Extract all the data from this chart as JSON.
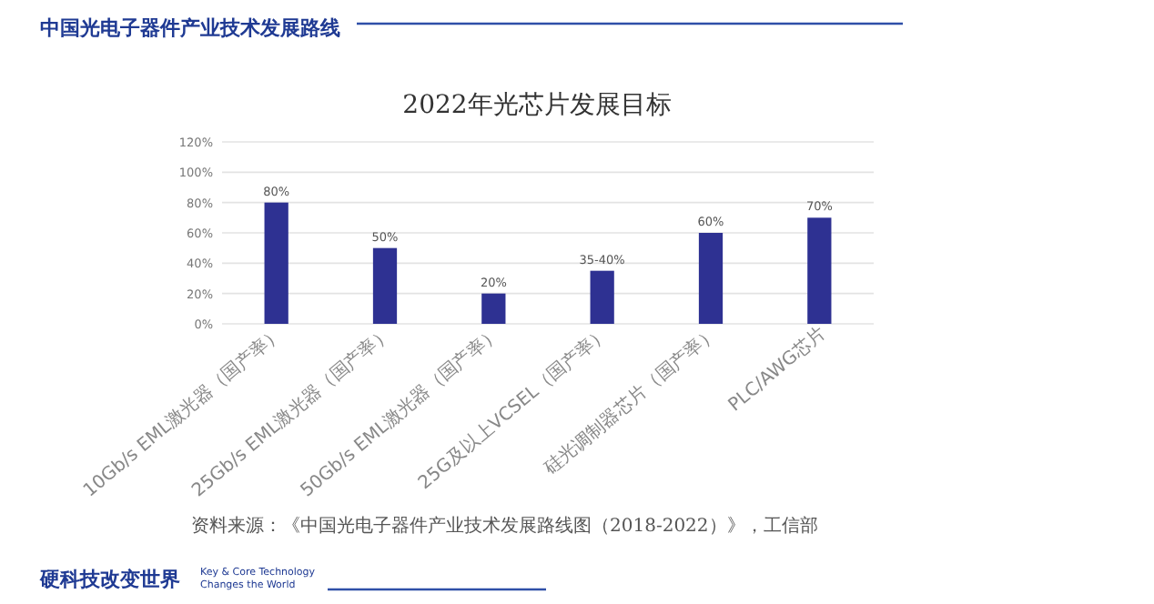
{
  "chart_data": {
    "type": "bar",
    "title": "2022年光芯片发展目标",
    "categories": [
      "10Gb/s EML激光器（国产率）",
      "25Gb/s EML激光器（国产率）",
      "50Gb/s EML激光器（国产率）",
      "25G及以上VCSEL（国产率）",
      "硅光调制器芯片（国产率）",
      "PLC/AWG芯片"
    ],
    "values": [
      80,
      50,
      20,
      35,
      60,
      70
    ],
    "value_labels": [
      "80%",
      "50%",
      "20%",
      "35-40%",
      "60%",
      "70%"
    ],
    "color": "#2e3192",
    "ylim": [
      0,
      120
    ],
    "yticks": [
      {
        "value": 0,
        "label": "0%"
      },
      {
        "value": 20,
        "label": "20%"
      },
      {
        "value": 40,
        "label": "40%"
      },
      {
        "value": 60,
        "label": "60%"
      },
      {
        "value": 80,
        "label": "80%"
      },
      {
        "value": 100,
        "label": "100%"
      },
      {
        "value": 120,
        "label": "120%"
      }
    ],
    "grid": "y",
    "annotations": [
      "中国光电子器件产业技术发展路线",
      "资料来源：《中国光电子器件产业技术发展路线图（2018-2022）》，工信部",
      "硬科技改变世界",
      "Key & Core Technology Changes the World"
    ]
  }
}
